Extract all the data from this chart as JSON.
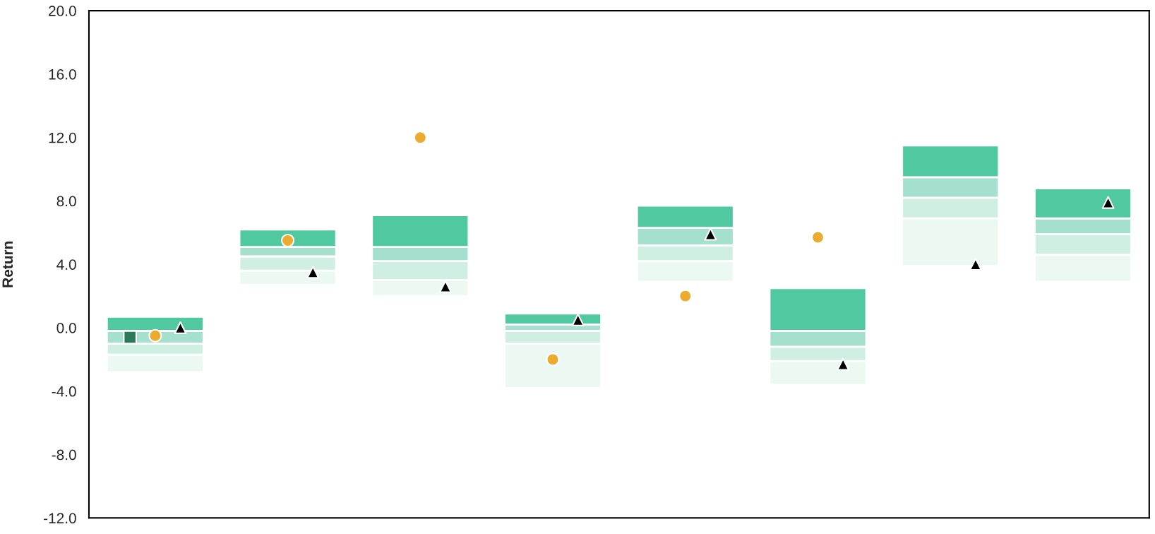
{
  "chart_data": {
    "type": "bar",
    "ylabel": "Return",
    "categories": [
      null,
      null,
      null,
      null,
      null,
      null,
      null,
      null
    ],
    "series": [
      {
        "type": "bar",
        "color": "#ebf9f2",
        "base": [
          -2.8,
          2.7,
          2.0,
          -3.8,
          2.9,
          -3.6,
          3.9,
          2.9
        ],
        "values": [
          1.1,
          0.9,
          1.0,
          2.8,
          1.3,
          1.5,
          3.0,
          1.7
        ]
      },
      {
        "type": "bar",
        "color": "#d0efe3",
        "base": [
          -1.7,
          3.6,
          3.0,
          -1.0,
          4.2,
          -2.1,
          6.9,
          4.6
        ],
        "values": [
          0.7,
          0.9,
          1.2,
          0.8,
          1.0,
          0.9,
          1.3,
          1.3
        ]
      },
      {
        "type": "bar",
        "color": "#a5e0cf",
        "base": [
          -1.0,
          4.5,
          4.2,
          -0.2,
          5.2,
          -1.2,
          8.2,
          5.9
        ],
        "values": [
          0.8,
          0.6,
          0.9,
          0.4,
          1.1,
          1.0,
          1.3,
          1.0
        ]
      },
      {
        "type": "bar",
        "color": "#50c9a0",
        "base": [
          -0.2,
          5.1,
          5.1,
          0.2,
          6.3,
          -0.2,
          9.5,
          6.9
        ],
        "values": [
          0.9,
          1.1,
          2.0,
          0.7,
          1.4,
          2.7,
          2.0,
          1.9
        ]
      },
      {
        "type": "scatter",
        "marker": "square",
        "color": "#2b7a5a",
        "values": [
          -0.6,
          null,
          null,
          null,
          null,
          null,
          null,
          null
        ]
      },
      {
        "type": "scatter",
        "marker": "circle",
        "color": "#ecaa2f",
        "values": [
          -0.5,
          5.5,
          12.0,
          -2.0,
          2.0,
          5.7,
          null,
          null
        ]
      },
      {
        "type": "scatter",
        "marker": "triangle",
        "color": "#000000",
        "values": [
          0.0,
          3.5,
          2.6,
          0.5,
          5.9,
          -2.3,
          4.0,
          7.9
        ]
      }
    ],
    "ylim": [
      -12,
      20
    ],
    "yticks": [
      {
        "value": -12,
        "label": "-12.0"
      },
      {
        "value": -8,
        "label": "-8.0"
      },
      {
        "value": -4,
        "label": "-4.0"
      },
      {
        "value": 0,
        "label": "0.0"
      },
      {
        "value": 4,
        "label": "4.0"
      },
      {
        "value": 8,
        "label": "8.0"
      },
      {
        "value": 12,
        "label": "12.0"
      },
      {
        "value": 16,
        "label": "16.0"
      },
      {
        "value": 20,
        "label": "20.0"
      }
    ],
    "tick_labels": "y",
    "grid": false,
    "legend": false
  }
}
